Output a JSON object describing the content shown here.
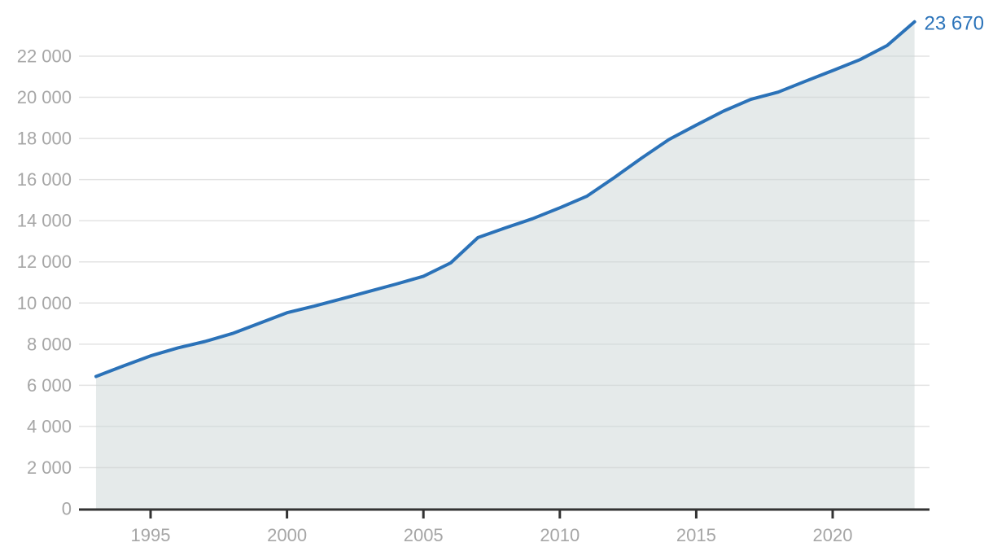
{
  "chart_data": {
    "type": "area",
    "title": "",
    "xlabel": "",
    "ylabel": "",
    "x": [
      1993,
      1994,
      1995,
      1996,
      1997,
      1998,
      1999,
      2000,
      2001,
      2002,
      2003,
      2004,
      2005,
      2006,
      2007,
      2008,
      2009,
      2010,
      2011,
      2012,
      2013,
      2014,
      2015,
      2016,
      2017,
      2018,
      2019,
      2020,
      2021,
      2022,
      2023
    ],
    "series": [
      {
        "name": "value",
        "values": [
          6430,
          6940,
          7430,
          7820,
          8130,
          8520,
          9020,
          9530,
          9850,
          10200,
          10560,
          10920,
          11300,
          11950,
          13180,
          13650,
          14100,
          14630,
          15200,
          16100,
          17050,
          17950,
          18650,
          19330,
          19900,
          20250,
          20780,
          21300,
          21830,
          22520,
          23670
        ]
      }
    ],
    "end_label": "23 670",
    "last_value": 23670,
    "xlim": [
      1993,
      2023
    ],
    "ylim": [
      0,
      23670
    ],
    "grid": true,
    "legend_position": "none",
    "y_ticks": [
      {
        "value": 0,
        "label": "0"
      },
      {
        "value": 2000,
        "label": "2 000"
      },
      {
        "value": 4000,
        "label": "4 000"
      },
      {
        "value": 6000,
        "label": "6 000"
      },
      {
        "value": 8000,
        "label": "8 000"
      },
      {
        "value": 10000,
        "label": "10 000"
      },
      {
        "value": 12000,
        "label": "12 000"
      },
      {
        "value": 14000,
        "label": "14 000"
      },
      {
        "value": 16000,
        "label": "16 000"
      },
      {
        "value": 18000,
        "label": "18 000"
      },
      {
        "value": 20000,
        "label": "20 000"
      },
      {
        "value": 22000,
        "label": "22 000"
      }
    ],
    "x_ticks": [
      {
        "value": 1995,
        "label": "1995"
      },
      {
        "value": 2000,
        "label": "2000"
      },
      {
        "value": 2005,
        "label": "2005"
      },
      {
        "value": 2010,
        "label": "2010"
      },
      {
        "value": 2015,
        "label": "2015"
      },
      {
        "value": 2020,
        "label": "2020"
      }
    ],
    "colors": {
      "line": "#2b72b8",
      "end_label": "#2c74ba",
      "area_fill_rgba": "rgba(203,214,214,0.5)",
      "gridline": "#e3e3e3",
      "axis": "#333333",
      "tick_text": "#a6a6a6",
      "background": "#ffffff"
    }
  }
}
